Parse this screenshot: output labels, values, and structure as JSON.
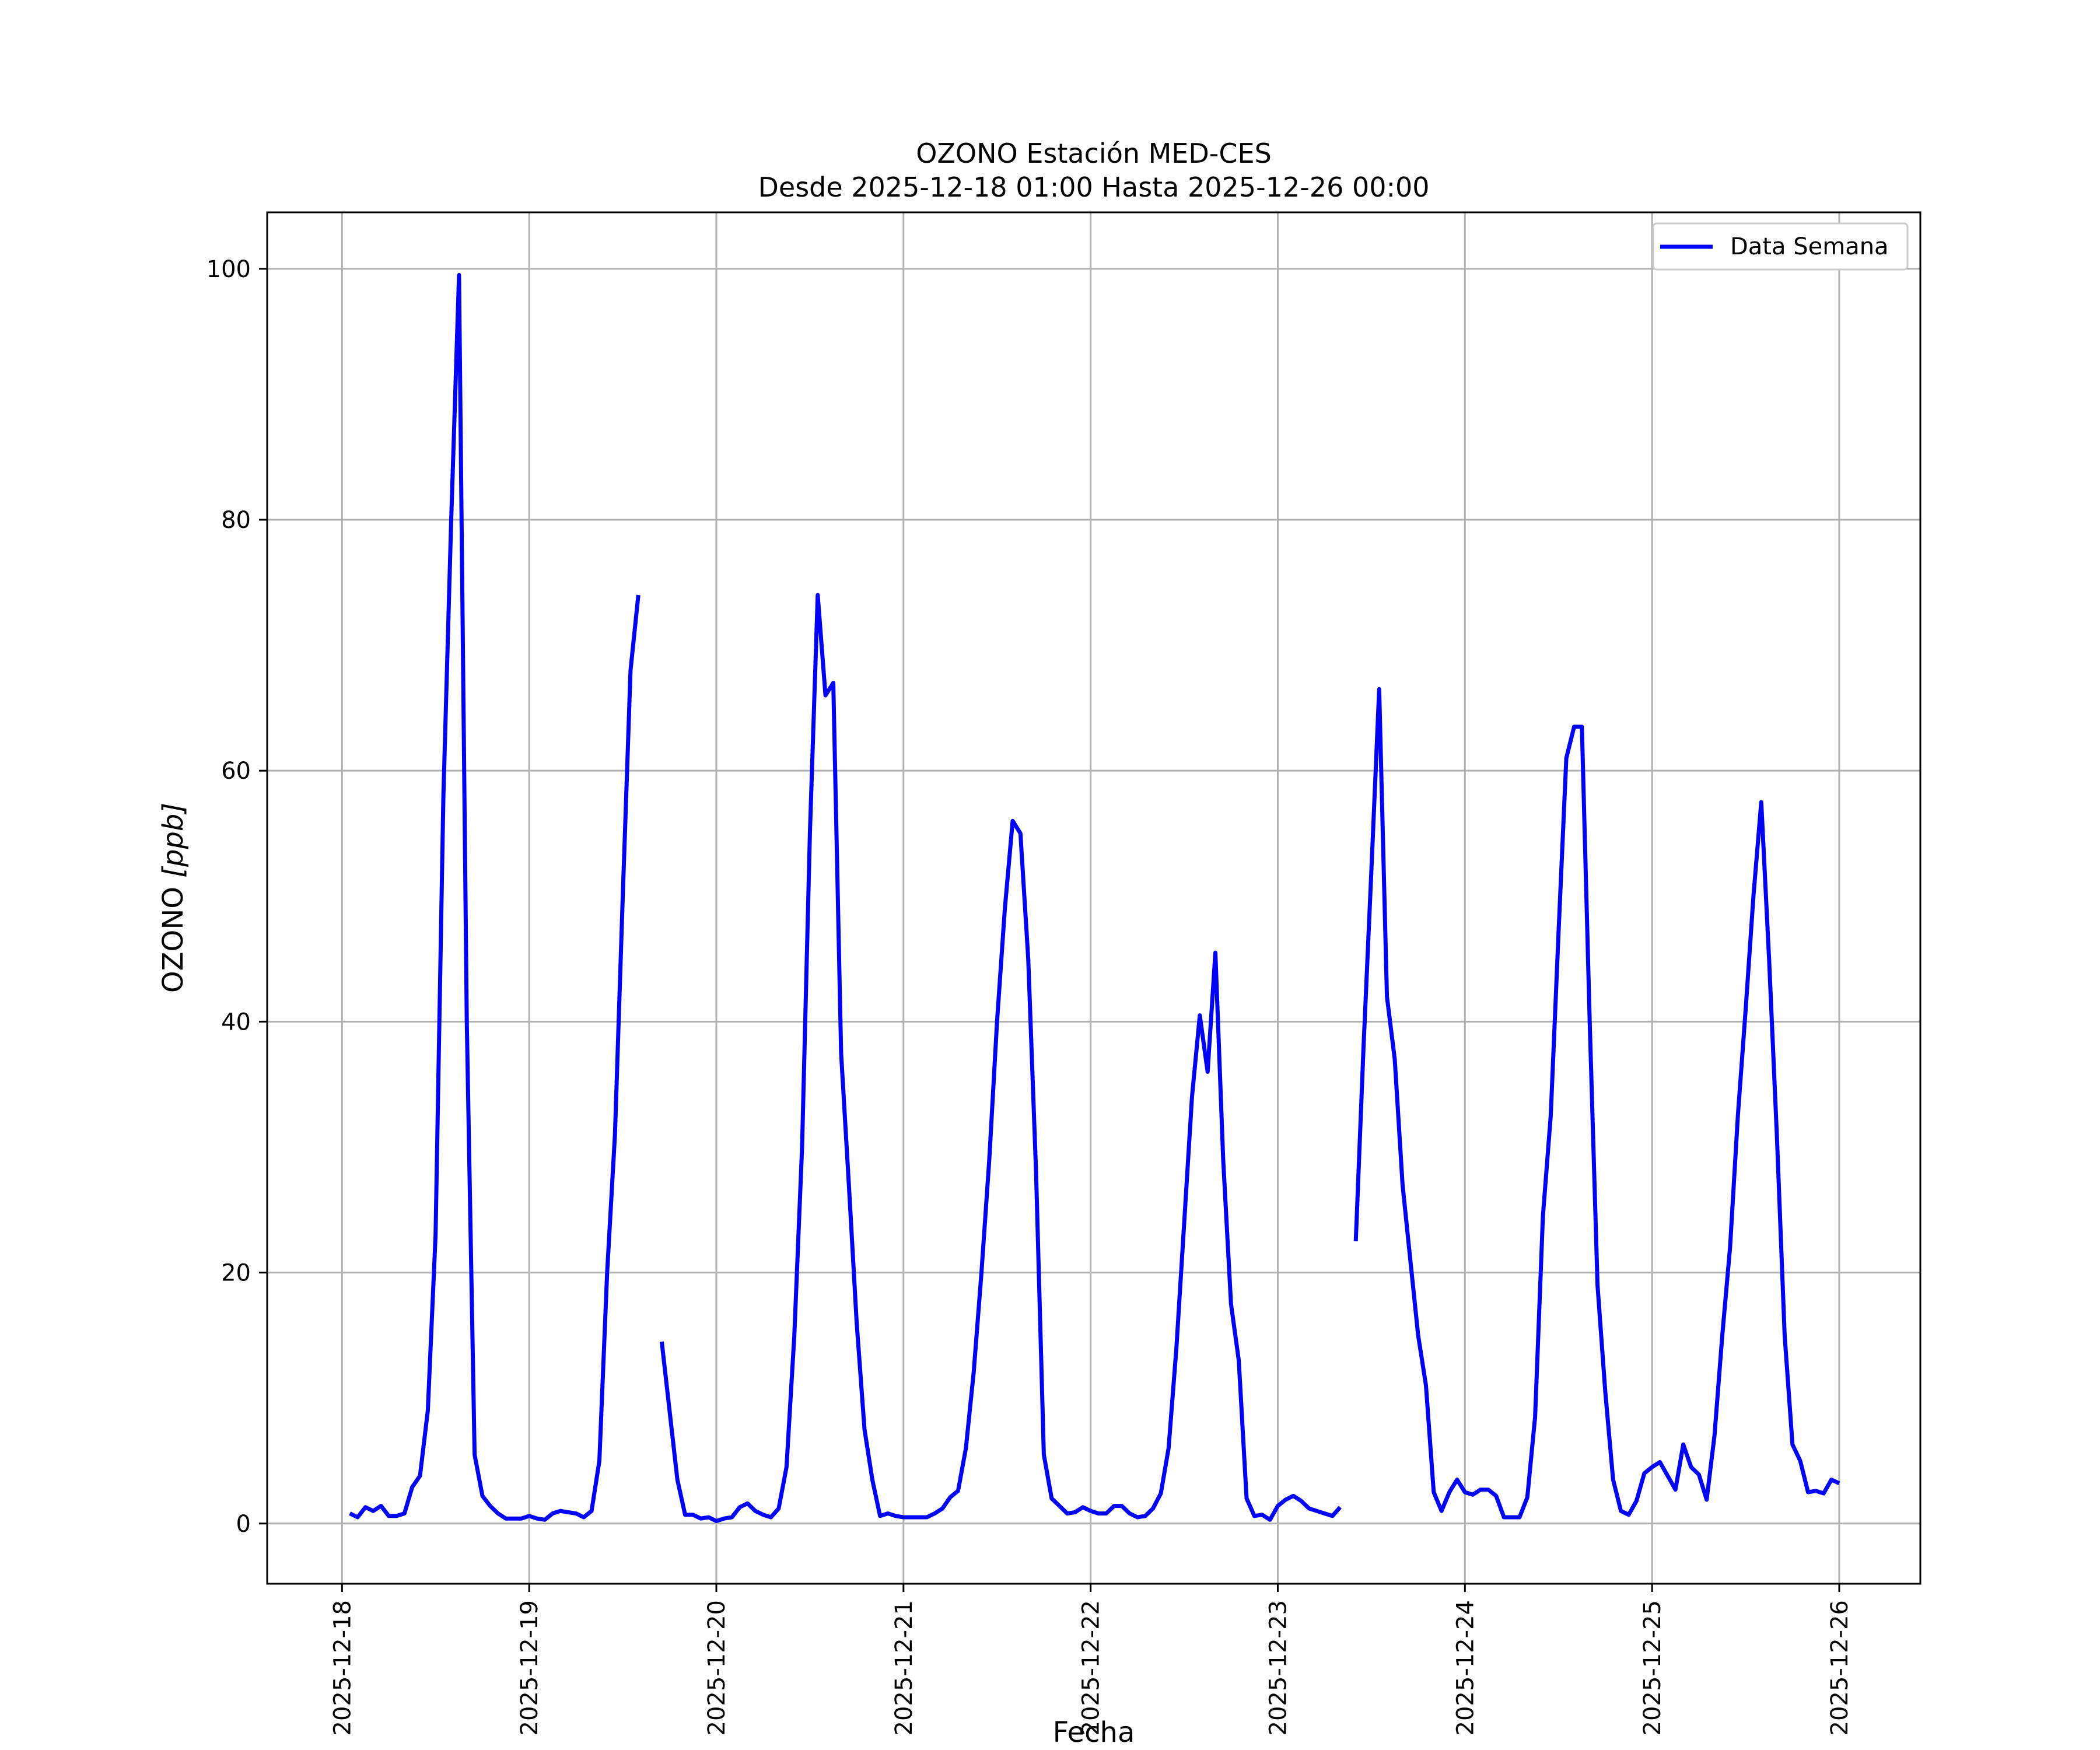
{
  "chart_data": {
    "type": "line",
    "title_line1": "OZONO Estación MED-CES",
    "title_line2": "Desde 2025-12-18 01:00 Hasta 2025-12-26 00:00",
    "xlabel": "Fecha",
    "ylabel": "OZONO [ppb]",
    "ylabel_main": "OZONO ",
    "ylabel_unit": "[ppb]",
    "ylim": [
      -4.8,
      104.5
    ],
    "xlim": [
      "2025-12-17 14:24",
      "2025-12-26 10:24"
    ],
    "x_tick_labels": [
      "2025-12-18",
      "2025-12-19",
      "2025-12-20",
      "2025-12-21",
      "2025-12-22",
      "2025-12-23",
      "2025-12-24",
      "2025-12-25",
      "2025-12-26"
    ],
    "y_tick_labels": [
      "0",
      "20",
      "40",
      "60",
      "80",
      "100"
    ],
    "y_ticks": [
      0,
      20,
      40,
      60,
      80,
      100
    ],
    "grid": true,
    "legend_position": "top-right",
    "line_color": "#0000ff",
    "series": [
      {
        "name": "Data Semana",
        "start": "2025-12-18 01:00",
        "interval_hours": 1,
        "values": [
          0.8,
          0.5,
          1.3,
          1.0,
          1.4,
          0.6,
          0.6,
          0.8,
          2.9,
          3.8,
          9.0,
          23.0,
          58.0,
          80.0,
          99.5,
          40.0,
          5.5,
          2.2,
          1.4,
          0.8,
          0.4,
          0.4,
          0.4,
          0.6,
          0.4,
          0.3,
          0.8,
          1.0,
          0.9,
          0.8,
          0.5,
          1.0,
          5.0,
          20.0,
          31.0,
          50.0,
          68.0,
          74.0,
          null,
          null,
          14.5,
          9.0,
          3.5,
          0.7,
          0.7,
          0.4,
          0.5,
          0.2,
          0.4,
          0.5,
          1.3,
          1.6,
          1.0,
          0.7,
          0.5,
          1.2,
          4.5,
          15.0,
          30.0,
          55.0,
          74.0,
          66.0,
          67.0,
          37.5,
          27.0,
          16.0,
          7.5,
          3.5,
          0.6,
          0.8,
          0.6,
          0.5,
          0.5,
          0.5,
          0.5,
          0.8,
          1.2,
          2.1,
          2.6,
          6.0,
          12.0,
          20.0,
          29.0,
          40.0,
          49.0,
          56.0,
          55.0,
          45.0,
          28.0,
          5.5,
          2.0,
          1.4,
          0.8,
          0.9,
          1.3,
          1.0,
          0.8,
          0.8,
          1.4,
          1.4,
          0.8,
          0.5,
          0.6,
          1.2,
          2.4,
          6.0,
          14.0,
          24.0,
          34.0,
          40.5,
          36.0,
          45.5,
          29.0,
          17.5,
          13.0,
          2.0,
          0.6,
          0.7,
          0.3,
          1.4,
          1.9,
          2.2,
          1.8,
          1.2,
          1.0,
          0.8,
          0.6,
          1.3,
          null,
          22.5,
          38.0,
          52.0,
          66.5,
          42.0,
          37.0,
          27.0,
          21.0,
          15.0,
          11.0,
          2.5,
          1.0,
          2.5,
          3.5,
          2.5,
          2.3,
          2.7,
          2.7,
          2.2,
          0.5,
          0.5,
          0.5,
          2.1,
          8.5,
          24.5,
          32.5,
          47.0,
          61.0,
          63.5,
          63.5,
          40.0,
          19.0,
          10.5,
          3.5,
          1.0,
          0.7,
          1.8,
          4.0,
          4.5,
          4.9,
          3.8,
          2.7,
          6.3,
          4.5,
          3.9,
          1.9,
          7.0,
          15.0,
          22.0,
          32.5,
          41.0,
          50.0,
          57.5,
          45.0,
          31.0,
          15.0,
          6.3,
          5.0,
          2.5,
          2.6,
          2.4,
          3.5,
          3.2
        ]
      }
    ]
  }
}
